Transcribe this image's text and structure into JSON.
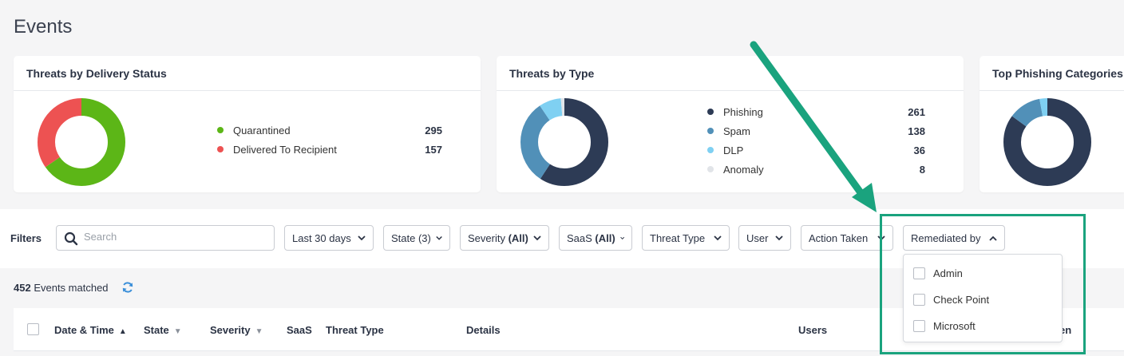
{
  "page": {
    "title": "Events"
  },
  "cards": {
    "delivery": {
      "title": "Threats by Delivery Status",
      "items": [
        {
          "label": "Quarantined",
          "value": "295",
          "color": "#5cb617"
        },
        {
          "label": "Delivered To Recipient",
          "value": "157",
          "color": "#ed5252"
        }
      ]
    },
    "type": {
      "title": "Threats by Type",
      "items": [
        {
          "label": "Phishing",
          "value": "261",
          "color": "#2d3b55"
        },
        {
          "label": "Spam",
          "value": "138",
          "color": "#5190b8"
        },
        {
          "label": "DLP",
          "value": "36",
          "color": "#7fd0f2"
        },
        {
          "label": "Anomaly",
          "value": "8",
          "color": "#e1e4e8"
        }
      ]
    },
    "phishing": {
      "title": "Top Phishing Categories",
      "segments": [
        {
          "value": 84,
          "color": "#2d3b55"
        },
        {
          "value": 12,
          "color": "#5190b8"
        },
        {
          "value": 3,
          "color": "#7fd0f2"
        }
      ]
    }
  },
  "filters": {
    "label": "Filters",
    "search_placeholder": "Search",
    "buttons": {
      "date": "Last 30 days",
      "state": "State (3)",
      "severity_prefix": "Severity ",
      "severity_suffix": "(All)",
      "saas_prefix": "SaaS ",
      "saas_suffix": "(All)",
      "threat_type": "Threat Type",
      "user": "User",
      "action_taken": "Action Taken",
      "remediated_by": "Remediated by"
    },
    "remediated_options": [
      "Admin",
      "Check Point",
      "Microsoft"
    ]
  },
  "events": {
    "count": "452",
    "count_suffix": " Events matched"
  },
  "table": {
    "columns": [
      "Date & Time",
      "State",
      "Severity",
      "SaaS",
      "Threat Type",
      "Details",
      "Users",
      "en"
    ]
  },
  "colors": {
    "highlight": "#1aa37e",
    "accent": "#3b8fd9"
  }
}
